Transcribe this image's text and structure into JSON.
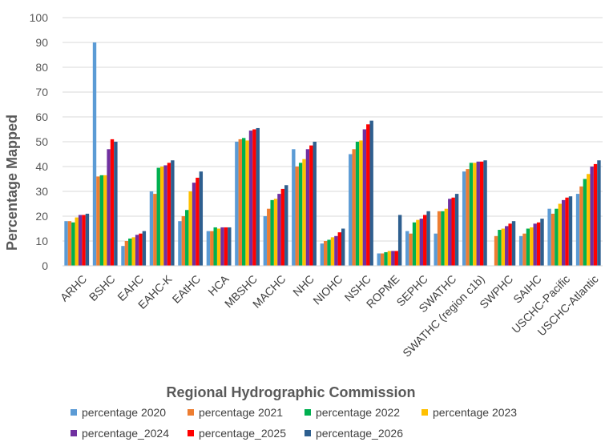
{
  "chart_data": {
    "type": "bar",
    "xlabel": "Regional Hydrographic Commission",
    "ylabel": "Percentage Mapped",
    "ylim": [
      0,
      100
    ],
    "yticks": [
      0,
      10,
      20,
      30,
      40,
      50,
      60,
      70,
      80,
      90,
      100
    ],
    "grid": true,
    "legend_position": "bottom",
    "categories": [
      "ARHC",
      "BSHC",
      "EAHC",
      "EAHC-K",
      "EAtHC",
      "HCA",
      "MBSHC",
      "MACHC",
      "NHC",
      "NIOHC",
      "NSHC",
      "ROPME",
      "SEPHC",
      "SWATHC",
      "SWATHC (region c1b)",
      "SWPHC",
      "SAIHC",
      "USCHC-Pacific",
      "USCHC-Atlantic"
    ],
    "series": [
      {
        "name": "percentage 2020",
        "color": "#5B9BD5",
        "values": [
          18,
          90,
          8,
          30,
          18,
          14,
          50,
          20,
          47,
          9,
          45,
          5,
          14,
          13,
          38,
          0,
          12,
          23,
          29
        ]
      },
      {
        "name": "percentage 2021",
        "color": "#ED7D31",
        "values": [
          18,
          36,
          10,
          29,
          20,
          14,
          51,
          23,
          40,
          10,
          47,
          5,
          13,
          22,
          39,
          12,
          13,
          21,
          32
        ]
      },
      {
        "name": "percentage 2022",
        "color": "#00B050",
        "values": [
          17.5,
          36.5,
          11,
          39.5,
          22.5,
          15.5,
          51.5,
          26.5,
          41.5,
          10.5,
          50,
          5.5,
          17.5,
          22,
          41.5,
          14.5,
          15,
          23,
          35
        ]
      },
      {
        "name": "percentage 2023",
        "color": "#FFC000",
        "values": [
          19.5,
          36.5,
          11.5,
          40,
          30,
          15,
          50.5,
          27,
          43,
          11.5,
          50.5,
          6,
          18.5,
          23,
          41.5,
          15,
          15.5,
          25,
          37
        ]
      },
      {
        "name": "percentage_2024",
        "color": "#7030A0",
        "values": [
          20.5,
          47,
          12.5,
          40.5,
          33.5,
          15.5,
          54.5,
          29,
          47,
          12,
          55,
          6,
          19,
          27,
          42,
          16,
          17,
          26.5,
          40
        ]
      },
      {
        "name": "percentage_2025",
        "color": "#FF0000",
        "values": [
          20.5,
          51,
          13,
          41.5,
          35.5,
          15.5,
          55,
          31,
          48.5,
          13.5,
          57,
          6,
          20.5,
          27.5,
          42,
          17,
          17.5,
          27.5,
          41
        ]
      },
      {
        "name": "percentage_2026",
        "color": "#2E5F8F",
        "values": [
          21,
          50,
          14,
          42.5,
          38,
          15.5,
          55.5,
          32.5,
          50,
          15,
          58.5,
          20.5,
          22,
          29,
          42.5,
          18,
          19,
          28,
          42.5
        ]
      }
    ]
  }
}
